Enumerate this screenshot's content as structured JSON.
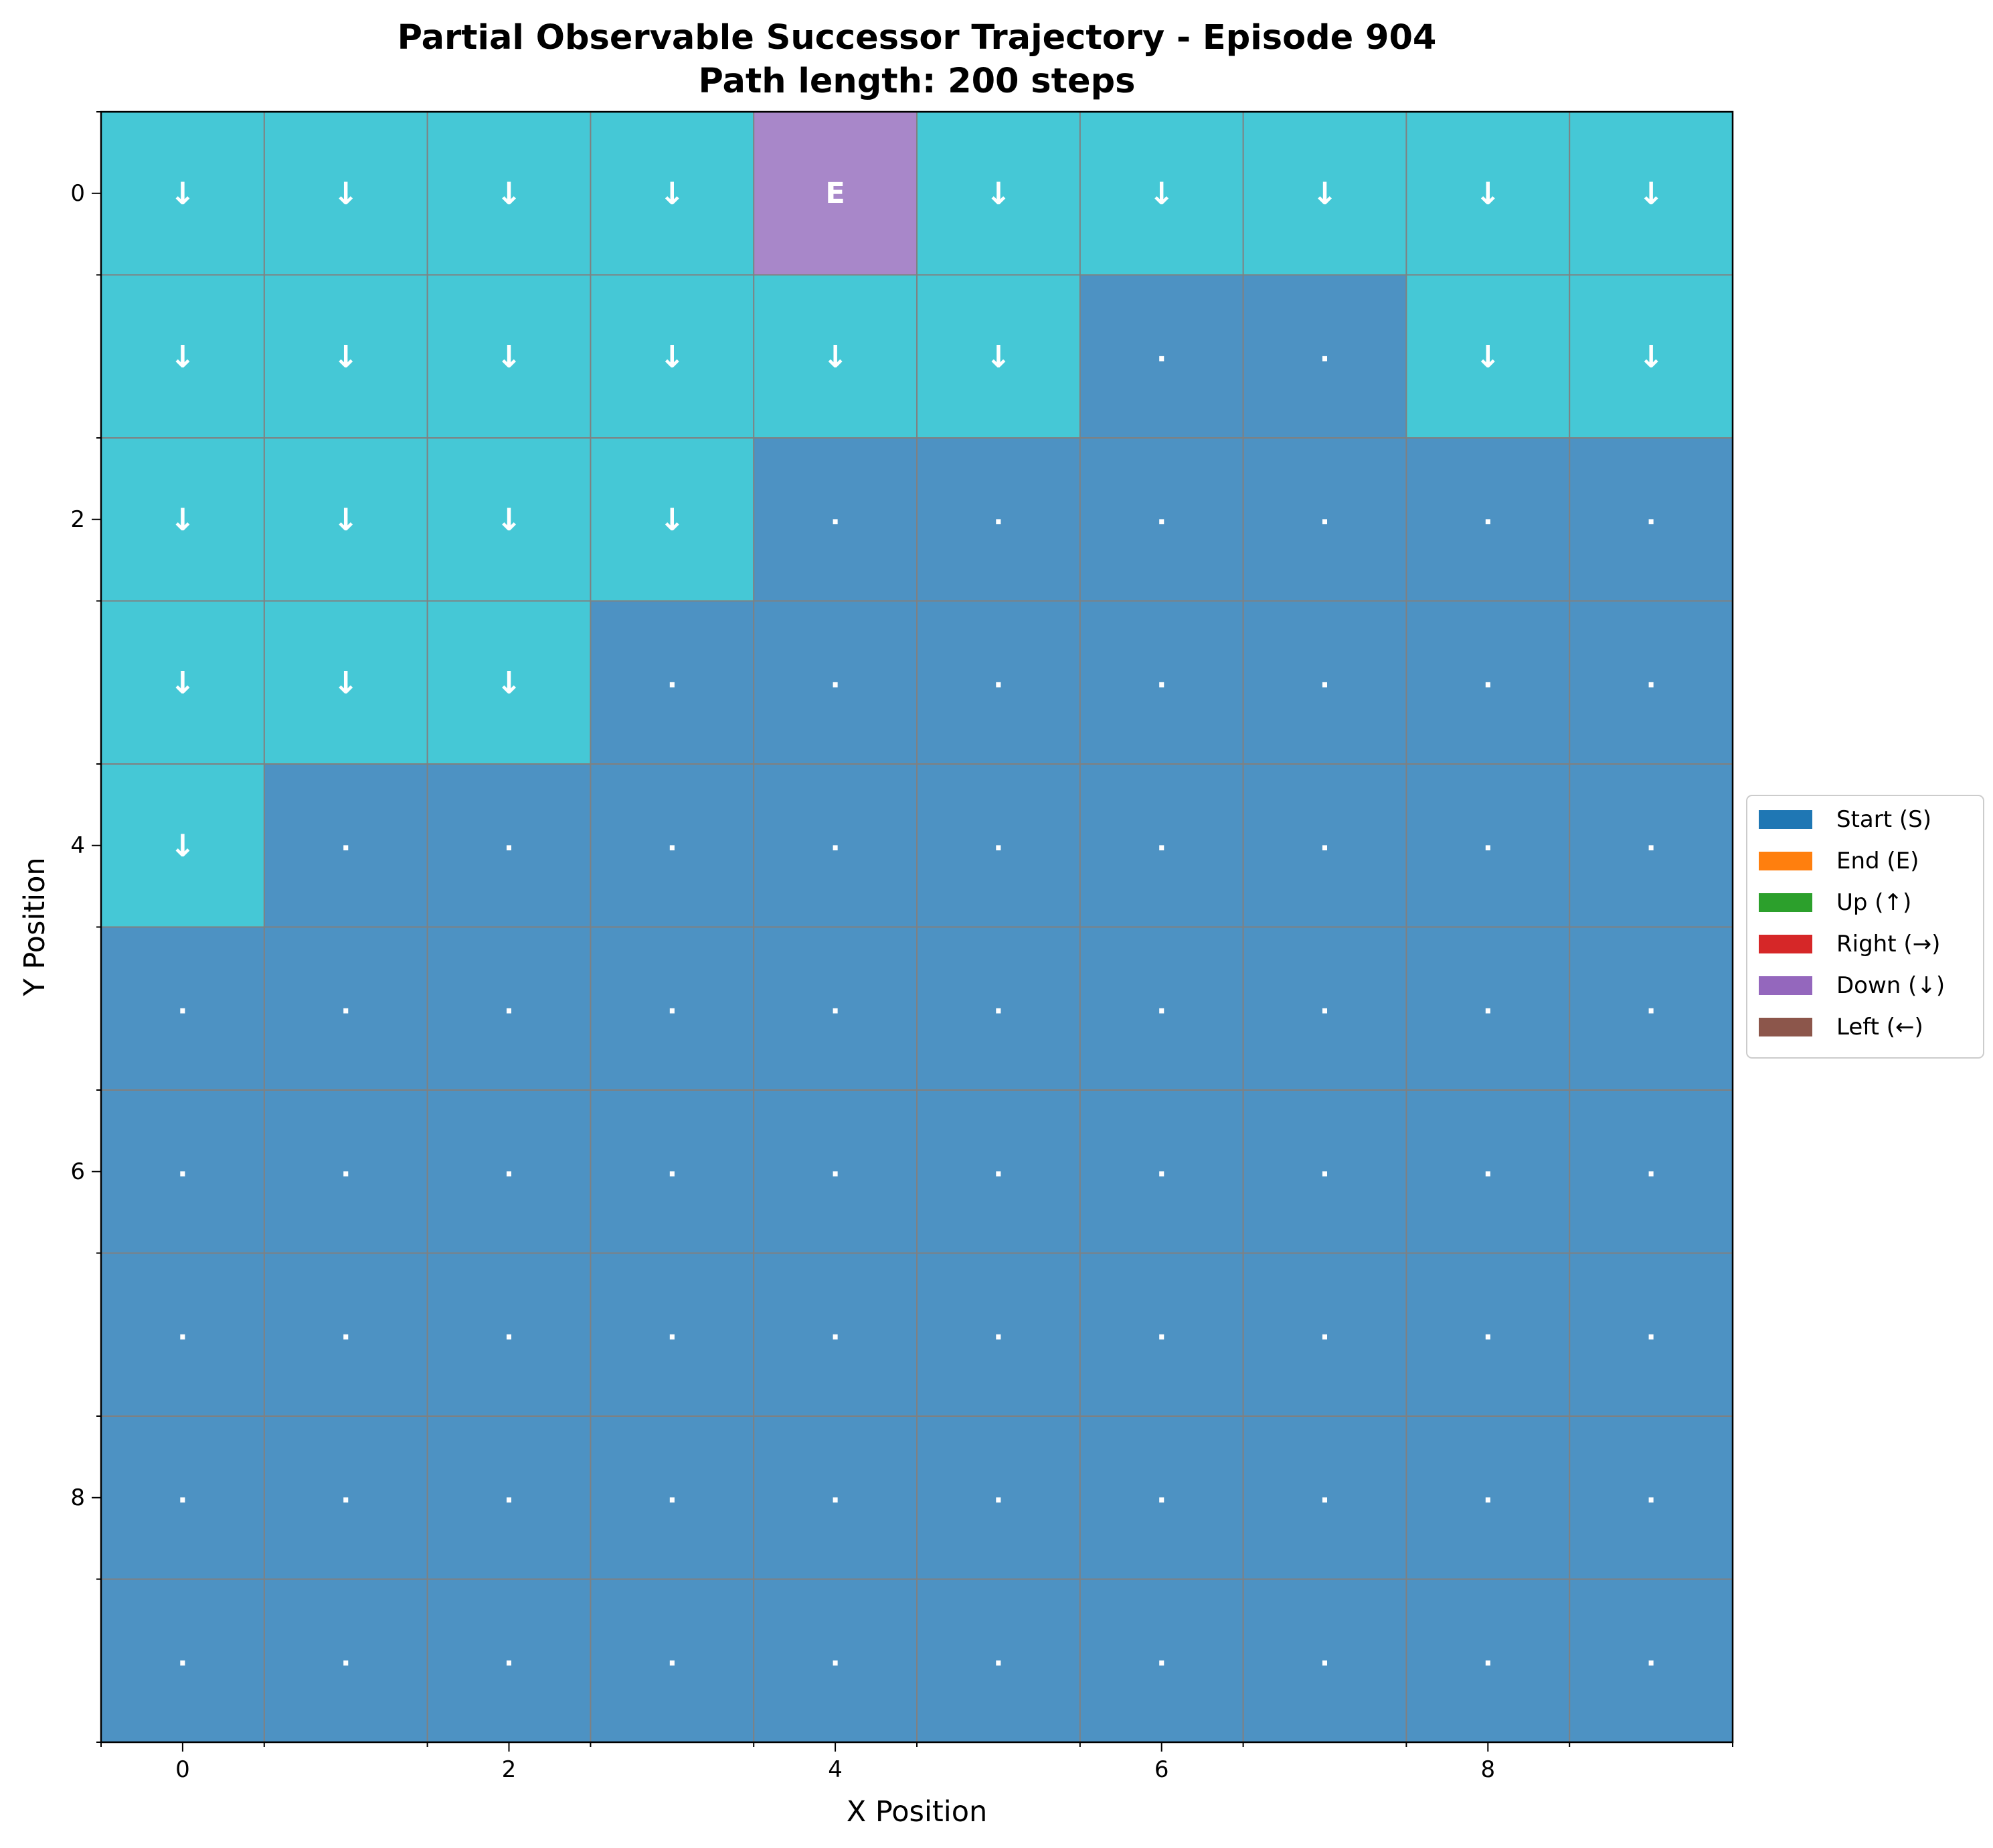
{
  "chart_data": {
    "type": "heatmap",
    "title_lines": [
      "Partial Observable Successor Trajectory - Episode 904",
      "Path length: 200 steps"
    ],
    "xlabel": "X Position",
    "ylabel": "Y Position",
    "x_ticks": [
      "0",
      "2",
      "4",
      "6",
      "8"
    ],
    "y_ticks": [
      "0",
      "2",
      "4",
      "6",
      "8"
    ],
    "xlim": [
      -0.5,
      9.5
    ],
    "ylim": [
      9.5,
      -0.5
    ],
    "grid": true,
    "y_axis_inverted": true,
    "cell_colors": {
      "down": "#45c8d6",
      "end": "#a887c9",
      "unvisited": "#4d92c3"
    },
    "cell_symbols": {
      "down": "↓",
      "end": "E",
      "unvisited": "."
    },
    "grid_rows": [
      [
        "down",
        "down",
        "down",
        "down",
        "end",
        "down",
        "down",
        "down",
        "down",
        "down"
      ],
      [
        "down",
        "down",
        "down",
        "down",
        "down",
        "down",
        "unvisited",
        "unvisited",
        "down",
        "down"
      ],
      [
        "down",
        "down",
        "down",
        "down",
        "unvisited",
        "unvisited",
        "unvisited",
        "unvisited",
        "unvisited",
        "unvisited"
      ],
      [
        "down",
        "down",
        "down",
        "unvisited",
        "unvisited",
        "unvisited",
        "unvisited",
        "unvisited",
        "unvisited",
        "unvisited"
      ],
      [
        "down",
        "unvisited",
        "unvisited",
        "unvisited",
        "unvisited",
        "unvisited",
        "unvisited",
        "unvisited",
        "unvisited",
        "unvisited"
      ],
      [
        "unvisited",
        "unvisited",
        "unvisited",
        "unvisited",
        "unvisited",
        "unvisited",
        "unvisited",
        "unvisited",
        "unvisited",
        "unvisited"
      ],
      [
        "unvisited",
        "unvisited",
        "unvisited",
        "unvisited",
        "unvisited",
        "unvisited",
        "unvisited",
        "unvisited",
        "unvisited",
        "unvisited"
      ],
      [
        "unvisited",
        "unvisited",
        "unvisited",
        "unvisited",
        "unvisited",
        "unvisited",
        "unvisited",
        "unvisited",
        "unvisited",
        "unvisited"
      ],
      [
        "unvisited",
        "unvisited",
        "unvisited",
        "unvisited",
        "unvisited",
        "unvisited",
        "unvisited",
        "unvisited",
        "unvisited",
        "unvisited"
      ],
      [
        "unvisited",
        "unvisited",
        "unvisited",
        "unvisited",
        "unvisited",
        "unvisited",
        "unvisited",
        "unvisited",
        "unvisited",
        "unvisited"
      ]
    ],
    "legend_placement": "right",
    "legend": [
      {
        "label": "Start (S)",
        "color": "#1f77b4"
      },
      {
        "label": "End (E)",
        "color": "#ff7f0e"
      },
      {
        "label": "Up (↑)",
        "color": "#2ca02c"
      },
      {
        "label": "Right (→)",
        "color": "#d62728"
      },
      {
        "label": "Down (↓)",
        "color": "#9467bd"
      },
      {
        "label": "Left (←)",
        "color": "#8c564b"
      }
    ]
  }
}
